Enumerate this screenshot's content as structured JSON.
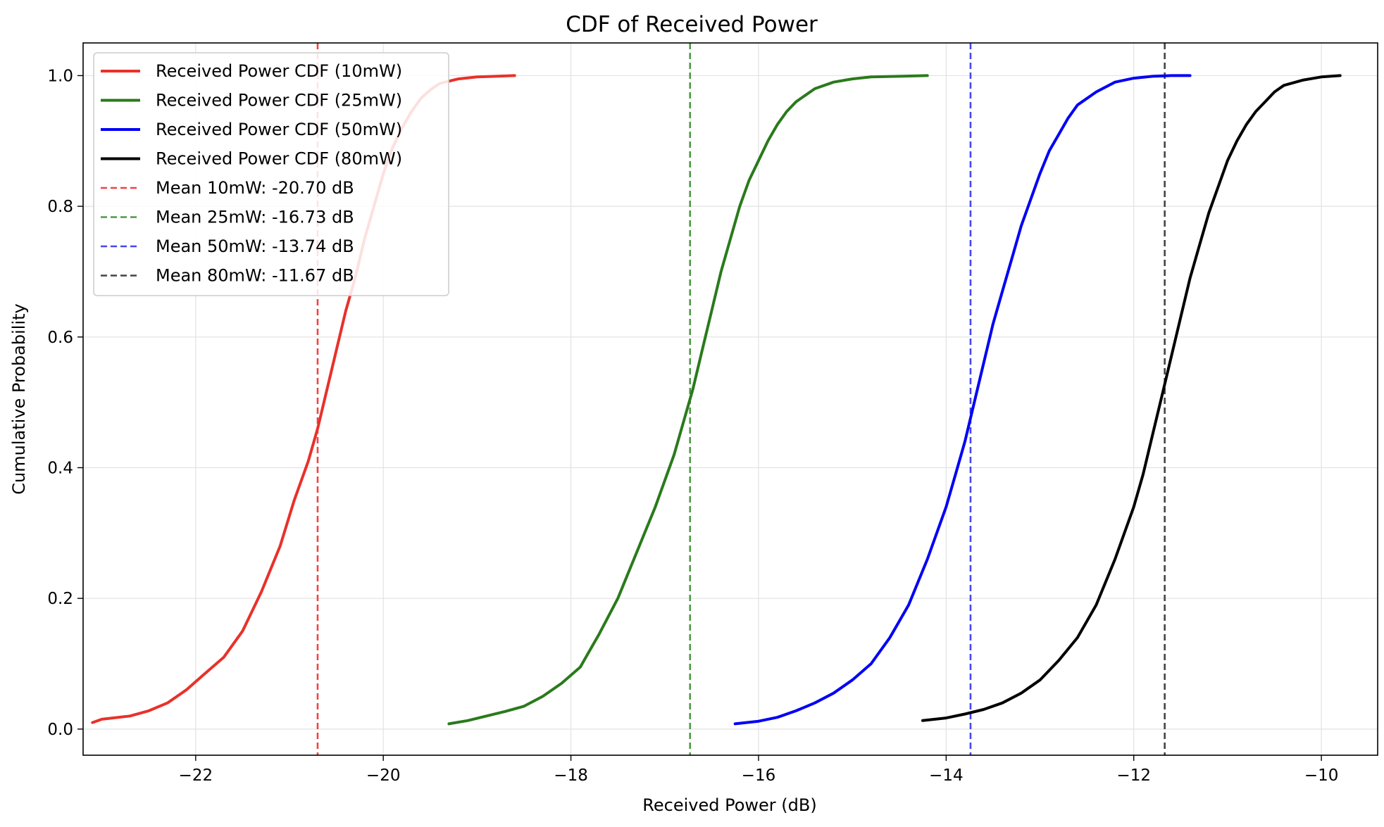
{
  "chart_data": {
    "type": "line",
    "title": "CDF of Received Power",
    "xlabel": "Received Power (dB)",
    "ylabel": "Cumulative Probability",
    "xlim": [
      -23.2,
      -9.4
    ],
    "ylim": [
      -0.04,
      1.05
    ],
    "grid": true,
    "legend_position": "top-left",
    "x_ticks": [
      {
        "value": -22,
        "label": "−22"
      },
      {
        "value": -20,
        "label": "−20"
      },
      {
        "value": -18,
        "label": "−18"
      },
      {
        "value": -16,
        "label": "−16"
      },
      {
        "value": -14,
        "label": "−14"
      },
      {
        "value": -12,
        "label": "−12"
      },
      {
        "value": -10,
        "label": "−10"
      }
    ],
    "y_ticks": [
      {
        "value": 0.0,
        "label": "0.0"
      },
      {
        "value": 0.2,
        "label": "0.2"
      },
      {
        "value": 0.4,
        "label": "0.4"
      },
      {
        "value": 0.6,
        "label": "0.6"
      },
      {
        "value": 0.8,
        "label": "0.8"
      },
      {
        "value": 1.0,
        "label": "1.0"
      }
    ],
    "series": [
      {
        "name": "Received Power CDF (10mW)",
        "color": "#e8312a",
        "style": "solid",
        "x": [
          -23.1,
          -23.0,
          -22.7,
          -22.5,
          -22.3,
          -22.1,
          -21.9,
          -21.7,
          -21.5,
          -21.3,
          -21.1,
          -20.95,
          -20.8,
          -20.7,
          -20.6,
          -20.5,
          -20.4,
          -20.3,
          -20.2,
          -20.1,
          -20.0,
          -19.9,
          -19.8,
          -19.7,
          -19.6,
          -19.5,
          -19.4,
          -19.2,
          -19.0,
          -18.8,
          -18.6
        ],
        "y": [
          0.01,
          0.015,
          0.02,
          0.028,
          0.04,
          0.06,
          0.085,
          0.11,
          0.15,
          0.21,
          0.28,
          0.35,
          0.41,
          0.46,
          0.52,
          0.58,
          0.64,
          0.69,
          0.75,
          0.8,
          0.85,
          0.89,
          0.92,
          0.945,
          0.965,
          0.978,
          0.988,
          0.995,
          0.998,
          0.999,
          1.0
        ]
      },
      {
        "name": "Received Power CDF (25mW)",
        "color": "#2a7a1c",
        "style": "solid",
        "x": [
          -19.3,
          -19.1,
          -18.9,
          -18.7,
          -18.5,
          -18.3,
          -18.1,
          -17.9,
          -17.8,
          -17.7,
          -17.5,
          -17.3,
          -17.1,
          -16.9,
          -16.8,
          -16.7,
          -16.6,
          -16.5,
          -16.4,
          -16.3,
          -16.2,
          -16.1,
          -16.0,
          -15.9,
          -15.8,
          -15.7,
          -15.6,
          -15.4,
          -15.2,
          -15.0,
          -14.8,
          -14.5,
          -14.2
        ],
        "y": [
          0.008,
          0.013,
          0.02,
          0.027,
          0.035,
          0.05,
          0.07,
          0.095,
          0.12,
          0.145,
          0.2,
          0.27,
          0.34,
          0.42,
          0.47,
          0.52,
          0.58,
          0.64,
          0.7,
          0.75,
          0.8,
          0.84,
          0.87,
          0.9,
          0.925,
          0.945,
          0.96,
          0.98,
          0.99,
          0.995,
          0.998,
          0.999,
          1.0
        ]
      },
      {
        "name": "Received Power CDF (50mW)",
        "color": "#0000f5",
        "style": "solid",
        "x": [
          -16.25,
          -16.0,
          -15.8,
          -15.6,
          -15.4,
          -15.2,
          -15.0,
          -14.8,
          -14.6,
          -14.4,
          -14.2,
          -14.0,
          -13.9,
          -13.8,
          -13.7,
          -13.6,
          -13.5,
          -13.4,
          -13.3,
          -13.2,
          -13.1,
          -13.0,
          -12.9,
          -12.8,
          -12.7,
          -12.6,
          -12.4,
          -12.2,
          -12.0,
          -11.8,
          -11.6,
          -11.4
        ],
        "y": [
          0.008,
          0.012,
          0.018,
          0.028,
          0.04,
          0.055,
          0.075,
          0.1,
          0.14,
          0.19,
          0.26,
          0.34,
          0.39,
          0.44,
          0.5,
          0.56,
          0.62,
          0.67,
          0.72,
          0.77,
          0.81,
          0.85,
          0.885,
          0.91,
          0.935,
          0.955,
          0.975,
          0.99,
          0.996,
          0.999,
          1.0,
          1.0
        ]
      },
      {
        "name": "Received Power CDF (80mW)",
        "color": "#000000",
        "style": "solid",
        "x": [
          -14.25,
          -14.0,
          -13.8,
          -13.6,
          -13.4,
          -13.2,
          -13.0,
          -12.8,
          -12.6,
          -12.4,
          -12.2,
          -12.0,
          -11.9,
          -11.8,
          -11.7,
          -11.6,
          -11.5,
          -11.4,
          -11.3,
          -11.2,
          -11.1,
          -11.0,
          -10.9,
          -10.8,
          -10.7,
          -10.6,
          -10.5,
          -10.4,
          -10.2,
          -10.0,
          -9.8
        ],
        "y": [
          0.013,
          0.017,
          0.023,
          0.03,
          0.04,
          0.055,
          0.075,
          0.105,
          0.14,
          0.19,
          0.26,
          0.34,
          0.39,
          0.45,
          0.51,
          0.57,
          0.63,
          0.69,
          0.74,
          0.79,
          0.83,
          0.87,
          0.9,
          0.925,
          0.945,
          0.96,
          0.975,
          0.985,
          0.993,
          0.998,
          1.0
        ]
      }
    ],
    "reference_lines": [
      {
        "name": "Mean 10mW: -20.70 dB",
        "x": -20.7,
        "color": "#ee4444"
      },
      {
        "name": "Mean 25mW: -16.73 dB",
        "x": -16.73,
        "color": "#4d9a45"
      },
      {
        "name": "Mean 50mW: -13.74 dB",
        "x": -13.74,
        "color": "#4646f5"
      },
      {
        "name": "Mean 80mW: -11.67 dB",
        "x": -11.67,
        "color": "#444444"
      }
    ]
  }
}
